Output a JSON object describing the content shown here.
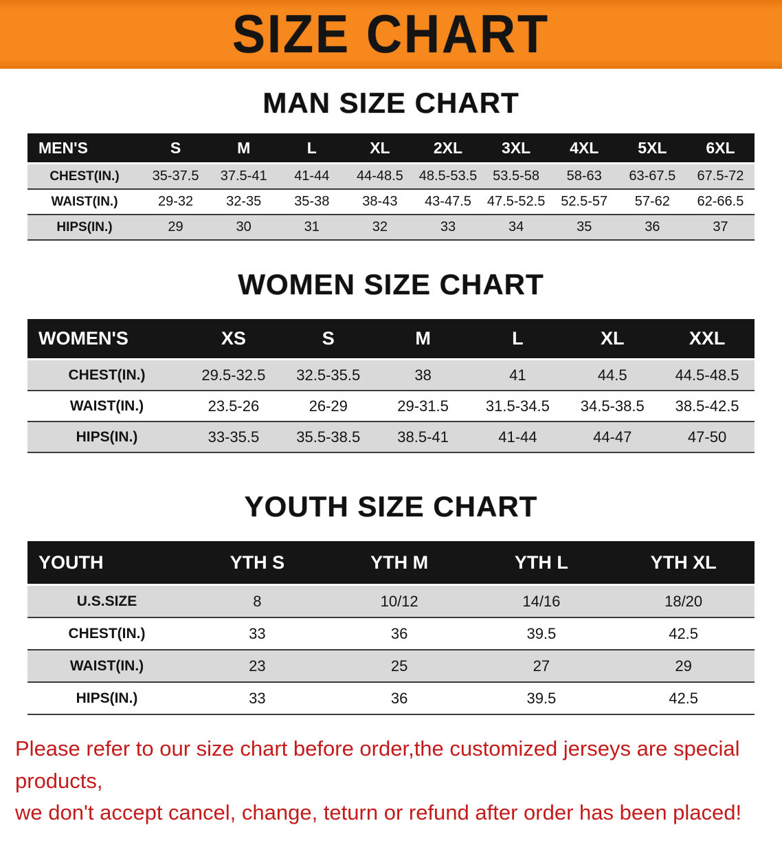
{
  "banner": {
    "title": "SIZE CHART",
    "bg_color": "#f6881e",
    "text_color": "#141414"
  },
  "chart_data": [
    {
      "type": "table",
      "title": "MAN SIZE CHART",
      "corner_label": "MEN'S",
      "columns": [
        "S",
        "M",
        "L",
        "XL",
        "2XL",
        "3XL",
        "4XL",
        "5XL",
        "6XL"
      ],
      "rows": [
        {
          "label": "CHEST(IN.)",
          "values": [
            "35-37.5",
            "37.5-41",
            "41-44",
            "44-48.5",
            "48.5-53.5",
            "53.5-58",
            "58-63",
            "63-67.5",
            "67.5-72"
          ]
        },
        {
          "label": "WAIST(IN.)",
          "values": [
            "29-32",
            "32-35",
            "35-38",
            "38-43",
            "43-47.5",
            "47.5-52.5",
            "52.5-57",
            "57-62",
            "62-66.5"
          ]
        },
        {
          "label": "HIPS(IN.)",
          "values": [
            "29",
            "30",
            "31",
            "32",
            "33",
            "34",
            "35",
            "36",
            "37"
          ]
        }
      ]
    },
    {
      "type": "table",
      "title": "WOMEN SIZE CHART",
      "corner_label": "WOMEN'S",
      "columns": [
        "XS",
        "S",
        "M",
        "L",
        "XL",
        "XXL"
      ],
      "rows": [
        {
          "label": "CHEST(IN.)",
          "values": [
            "29.5-32.5",
            "32.5-35.5",
            "38",
            "41",
            "44.5",
            "44.5-48.5"
          ]
        },
        {
          "label": "WAIST(IN.)",
          "values": [
            "23.5-26",
            "26-29",
            "29-31.5",
            "31.5-34.5",
            "34.5-38.5",
            "38.5-42.5"
          ]
        },
        {
          "label": "HIPS(IN.)",
          "values": [
            "33-35.5",
            "35.5-38.5",
            "38.5-41",
            "41-44",
            "44-47",
            "47-50"
          ]
        }
      ]
    },
    {
      "type": "table",
      "title": "YOUTH SIZE CHART",
      "corner_label": "YOUTH",
      "columns": [
        "YTH S",
        "YTH M",
        "YTH L",
        "YTH XL"
      ],
      "rows": [
        {
          "label": "U.S.SIZE",
          "values": [
            "8",
            "10/12",
            "14/16",
            "18/20"
          ]
        },
        {
          "label": "CHEST(IN.)",
          "values": [
            "33",
            "36",
            "39.5",
            "42.5"
          ]
        },
        {
          "label": "WAIST(IN.)",
          "values": [
            "23",
            "25",
            "27",
            "29"
          ]
        },
        {
          "label": "HIPS(IN.)",
          "values": [
            "33",
            "36",
            "39.5",
            "42.5"
          ]
        }
      ]
    }
  ],
  "footer": {
    "line1": "Please refer to our size chart before order,the customized jerseys are special products,",
    "line2": "we don't accept cancel, change, teturn or refund after order has been placed!",
    "text_color": "#c51a1a"
  },
  "colors": {
    "header_row_bg": "#151515",
    "header_row_text": "#ffffff",
    "stripe_row_bg": "#d9d9d9",
    "plain_row_bg": "#ffffff"
  }
}
